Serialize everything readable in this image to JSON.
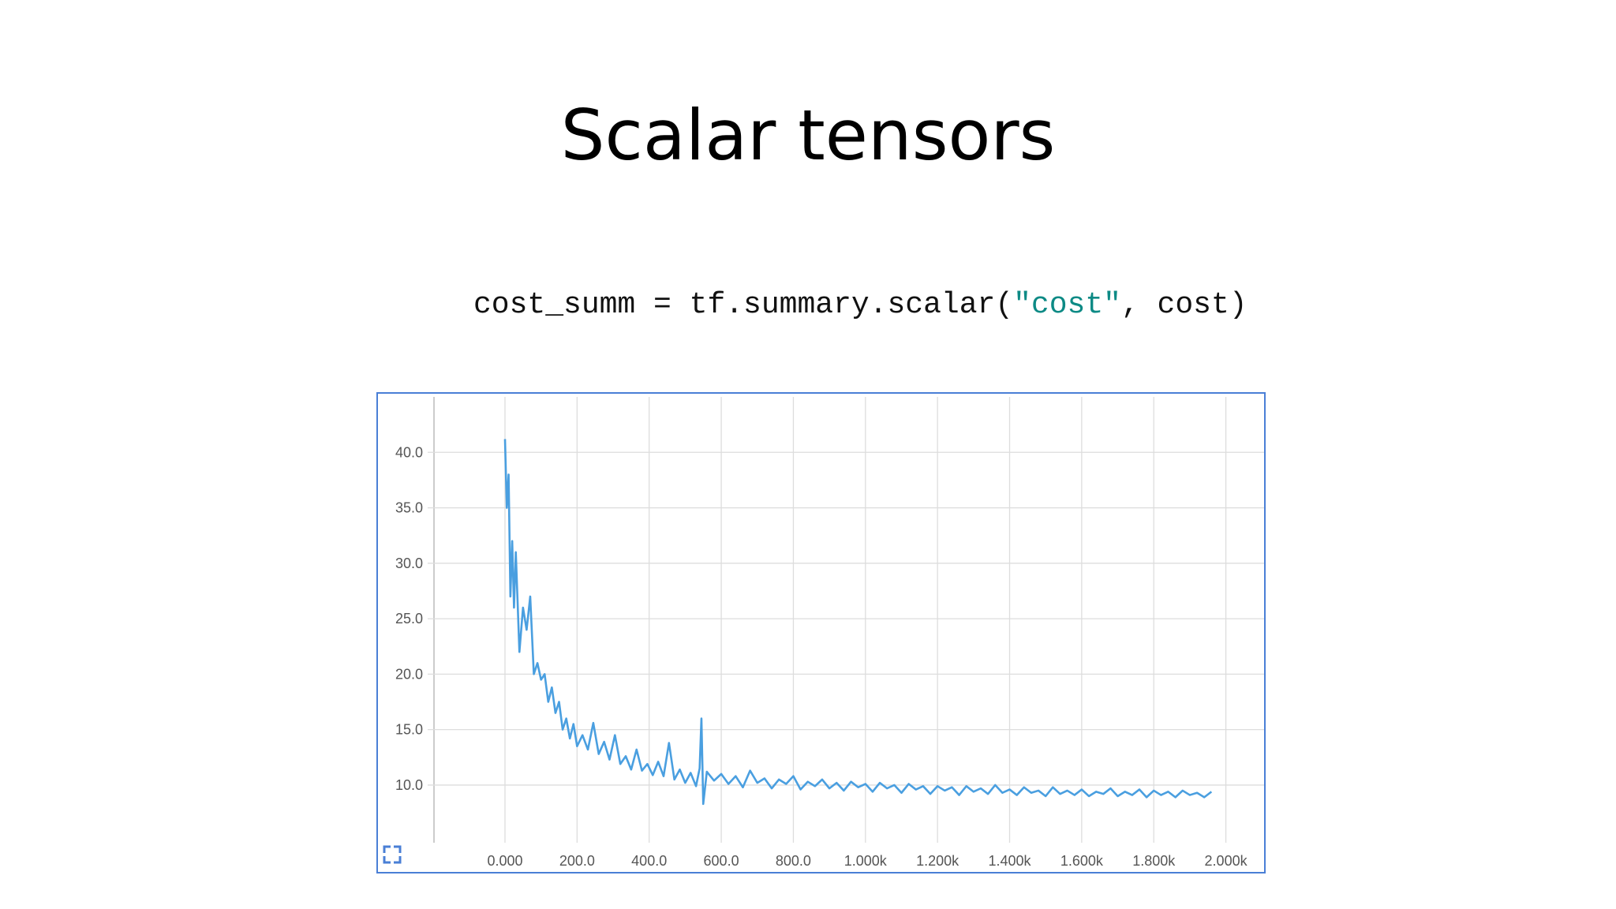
{
  "title": "Scalar tensors",
  "code": {
    "prefix": "cost_summ = tf.summary.scalar(",
    "string": "\"cost\"",
    "suffix": ", cost)"
  },
  "chart_data": {
    "type": "line",
    "x": [
      0,
      5,
      10,
      15,
      20,
      25,
      30,
      40,
      50,
      60,
      70,
      80,
      90,
      100,
      110,
      120,
      130,
      140,
      150,
      160,
      170,
      180,
      190,
      200,
      215,
      230,
      245,
      260,
      275,
      290,
      305,
      320,
      335,
      350,
      365,
      380,
      395,
      410,
      425,
      440,
      455,
      470,
      485,
      500,
      515,
      530,
      540,
      545,
      550,
      560,
      580,
      600,
      620,
      640,
      660,
      680,
      700,
      720,
      740,
      760,
      780,
      800,
      820,
      840,
      860,
      880,
      900,
      920,
      940,
      960,
      980,
      1000,
      1020,
      1040,
      1060,
      1080,
      1100,
      1120,
      1140,
      1160,
      1180,
      1200,
      1220,
      1240,
      1260,
      1280,
      1300,
      1320,
      1340,
      1360,
      1380,
      1400,
      1420,
      1440,
      1460,
      1480,
      1500,
      1520,
      1540,
      1560,
      1580,
      1600,
      1620,
      1640,
      1660,
      1680,
      1700,
      1720,
      1740,
      1760,
      1780,
      1800,
      1820,
      1840,
      1860,
      1880,
      1900,
      1920,
      1940,
      1960
    ],
    "series": [
      {
        "name": "cost",
        "color": "#4a9fe0",
        "values": [
          41.2,
          35,
          38,
          27,
          32,
          26,
          31,
          22,
          26,
          24,
          27,
          20,
          21,
          19.5,
          20,
          17.5,
          18.8,
          16.5,
          17.5,
          15,
          16,
          14.2,
          15.5,
          13.5,
          14.5,
          13.2,
          15.6,
          12.8,
          13.9,
          12.3,
          14.5,
          11.9,
          12.6,
          11.4,
          13.2,
          11.3,
          11.9,
          10.9,
          12.1,
          10.8,
          13.8,
          10.5,
          11.4,
          10.2,
          11.1,
          9.9,
          11.5,
          16,
          8.3,
          11.2,
          10.4,
          11,
          10.1,
          10.8,
          9.8,
          11.3,
          10.2,
          10.6,
          9.7,
          10.5,
          10.1,
          10.8,
          9.6,
          10.3,
          9.9,
          10.5,
          9.7,
          10.2,
          9.5,
          10.3,
          9.8,
          10.1,
          9.4,
          10.2,
          9.7,
          10,
          9.3,
          10.1,
          9.6,
          9.9,
          9.2,
          9.9,
          9.5,
          9.8,
          9.1,
          9.9,
          9.4,
          9.7,
          9.2,
          10,
          9.3,
          9.6,
          9.1,
          9.8,
          9.3,
          9.5,
          9,
          9.8,
          9.2,
          9.5,
          9.1,
          9.6,
          9,
          9.4,
          9.2,
          9.7,
          9,
          9.4,
          9.1,
          9.6,
          8.9,
          9.5,
          9.1,
          9.4,
          8.9,
          9.5,
          9.1,
          9.3,
          8.9,
          9.4
        ]
      }
    ],
    "xlim": [
      -197,
      2106
    ],
    "ylim": [
      4.8,
      45
    ],
    "xticks": [
      {
        "value": 0,
        "label": "0.000"
      },
      {
        "value": 200,
        "label": "200.0"
      },
      {
        "value": 400,
        "label": "400.0"
      },
      {
        "value": 600,
        "label": "600.0"
      },
      {
        "value": 800,
        "label": "800.0"
      },
      {
        "value": 1000,
        "label": "1.000k"
      },
      {
        "value": 1200,
        "label": "1.200k"
      },
      {
        "value": 1400,
        "label": "1.400k"
      },
      {
        "value": 1600,
        "label": "1.600k"
      },
      {
        "value": 1800,
        "label": "1.800k"
      },
      {
        "value": 2000,
        "label": "2.000k"
      }
    ],
    "yticks": [
      {
        "value": 10,
        "label": "10.0"
      },
      {
        "value": 15,
        "label": "15.0"
      },
      {
        "value": 20,
        "label": "20.0"
      },
      {
        "value": 25,
        "label": "25.0"
      },
      {
        "value": 30,
        "label": "30.0"
      },
      {
        "value": 35,
        "label": "35.0"
      },
      {
        "value": 40,
        "label": "40.0"
      }
    ],
    "grid": true
  }
}
